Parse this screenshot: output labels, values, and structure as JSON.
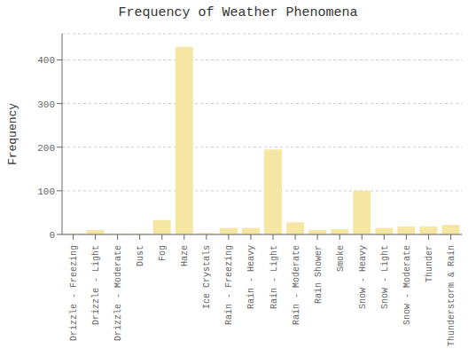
{
  "chart_data": {
    "type": "bar",
    "title": "Frequency of Weather Phenomena",
    "ylabel": "Frequency",
    "categories": [
      "Drizzle - Freezing",
      "Drizzle - Light",
      "Drizzle - Moderate",
      "Dust",
      "Fog",
      "Haze",
      "Ice Crystals",
      "Rain - Freezing",
      "Rain - Heavy",
      "Rain - Light",
      "Rain - Moderate",
      "Rain Shower",
      "Smoke",
      "Snow - Heavy",
      "Snow - Light",
      "Snow - Moderate",
      "Thunder",
      "Thunderstorm & Rain"
    ],
    "values": [
      2,
      10,
      2,
      2,
      33,
      430,
      3,
      15,
      15,
      195,
      28,
      10,
      12,
      100,
      15,
      18,
      18,
      22
    ],
    "color": "#F5E6A3",
    "ylim": [
      0,
      460
    ],
    "yticks": [
      0,
      100,
      200,
      300,
      400
    ],
    "grid": true
  }
}
